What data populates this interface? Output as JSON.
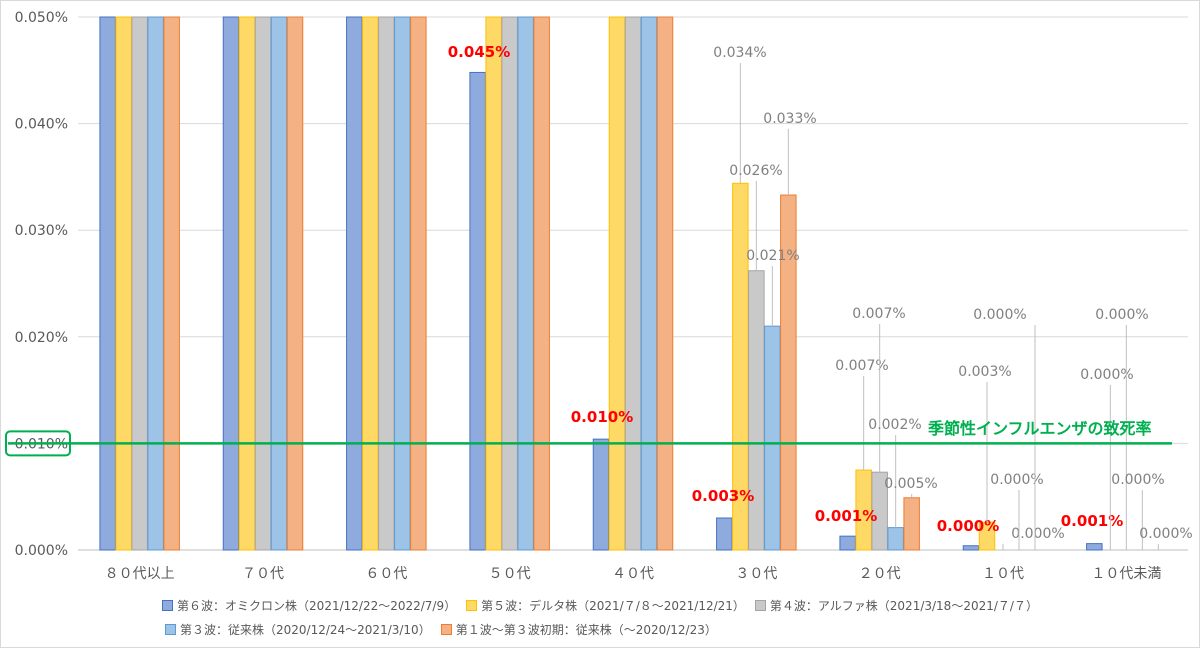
{
  "chart_data": {
    "type": "bar",
    "categories": [
      "８０代以上",
      "７０代",
      "６０代",
      "５０代",
      "４０代",
      "３０代",
      "２０代",
      "１０代",
      "１０代未満"
    ],
    "ylim": [
      0,
      0.05
    ],
    "ytick_labels": [
      "0.000%",
      "0.010%",
      "0.020%",
      "0.030%",
      "0.040%",
      "0.050%"
    ],
    "grid": true,
    "legend_position": "bottom",
    "series": [
      {
        "name": "第６波：オミクロン株（2021/12/22～2022/7/9）",
        "color": "#8faadc",
        "stroke": "#4472c4",
        "values": [
          0.05,
          0.05,
          0.05,
          0.0448,
          0.0104,
          0.003,
          0.0013,
          0.0004,
          0.0006
        ],
        "labels": [
          "",
          "",
          "",
          "0.045%",
          "0.010%",
          "0.003%",
          "0.001%",
          "0.000%",
          "0.001%"
        ]
      },
      {
        "name": "第５波：デルタ株（2021/７/８～2021/12/21）",
        "color": "#ffd966",
        "stroke": "#ffc000",
        "values": [
          0.05,
          0.05,
          0.05,
          0.05,
          0.05,
          0.0344,
          0.0075,
          0.0026,
          0.0
        ],
        "labels": [
          "",
          "",
          "",
          "",
          "",
          "0.034%",
          "0.007%",
          "0.003%",
          "0.000%"
        ]
      },
      {
        "name": "第４波：アルファ株（2021/3/18～2021/７/７）",
        "color": "#c9c9c9",
        "stroke": "#a5a5a5",
        "values": [
          0.05,
          0.05,
          0.05,
          0.05,
          0.05,
          0.0262,
          0.0073,
          0.0,
          0.0
        ],
        "labels": [
          "",
          "",
          "",
          "",
          "",
          "0.026%",
          "0.007%",
          "0.000%",
          "0.000%"
        ]
      },
      {
        "name": "第３波：従来株（2020/12/24～2021/3/10）",
        "color": "#9dc3e6",
        "stroke": "#5b9bd5",
        "values": [
          0.05,
          0.05,
          0.05,
          0.05,
          0.05,
          0.021,
          0.0021,
          0.0,
          0.0
        ],
        "labels": [
          "",
          "",
          "",
          "",
          "",
          "0.021%",
          "0.002%",
          "0.000%",
          "0.000%"
        ]
      },
      {
        "name": "第１波～第３波初期：従来株（～2020/12/23）",
        "color": "#f4b183",
        "stroke": "#ed7d31",
        "values": [
          0.05,
          0.05,
          0.05,
          0.05,
          0.05,
          0.0333,
          0.0049,
          0.0,
          0.0
        ],
        "labels": [
          "",
          "",
          "",
          "",
          "",
          "0.033%",
          "0.005%",
          "0.000%",
          "0.000%"
        ]
      }
    ],
    "reference_line": {
      "value": 0.01,
      "label": "季節性インフルエンザの致死率",
      "tick_label": "0.010%",
      "color": "#00b050"
    },
    "highlight_color": "#ff0000",
    "label_color": "#808080"
  }
}
